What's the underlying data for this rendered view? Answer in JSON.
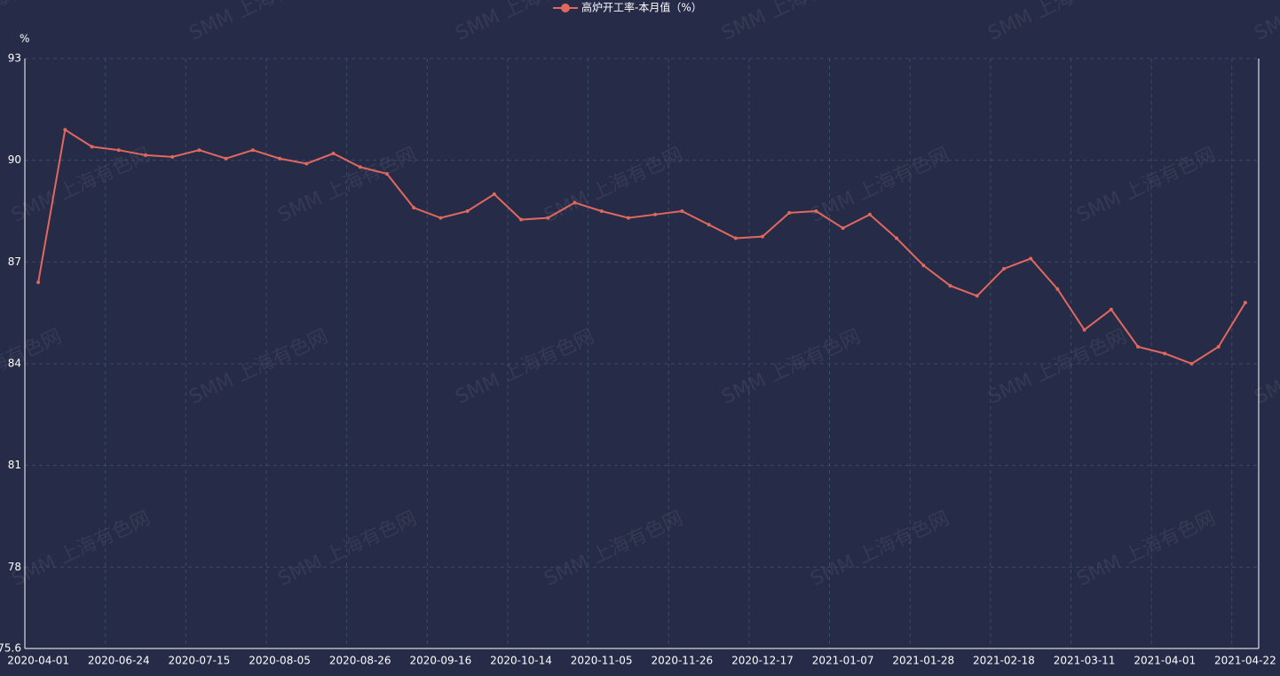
{
  "chart_data": {
    "type": "line",
    "y_axis_label": "%",
    "watermark": "SMM 上海有色网",
    "categories": [
      "2020-04-01",
      null,
      null,
      "2020-06-24",
      null,
      null,
      "2020-07-15",
      null,
      null,
      "2020-08-05",
      null,
      null,
      "2020-08-26",
      null,
      null,
      "2020-09-16",
      null,
      null,
      "2020-10-14",
      null,
      null,
      "2020-11-05",
      null,
      null,
      "2020-11-26",
      null,
      null,
      "2020-12-17",
      null,
      null,
      "2021-01-07",
      null,
      null,
      "2021-01-28",
      null,
      null,
      "2021-02-18",
      null,
      null,
      "2021-03-11",
      null,
      null,
      "2021-04-01",
      null,
      null,
      "2021-04-22"
    ],
    "series": [
      {
        "name": "高炉开工率-本月值（%）",
        "color": "#e0685e",
        "values": [
          86.4,
          90.9,
          90.4,
          90.3,
          90.15,
          90.1,
          90.3,
          90.05,
          90.3,
          90.05,
          89.9,
          90.2,
          89.8,
          89.6,
          88.6,
          88.3,
          88.5,
          89.0,
          88.25,
          88.3,
          88.75,
          88.5,
          88.3,
          88.4,
          88.5,
          88.1,
          87.7,
          87.75,
          88.45,
          88.5,
          88.0,
          88.4,
          87.7,
          86.9,
          86.3,
          86.0,
          86.8,
          87.1,
          86.2,
          85.0,
          85.6,
          84.5,
          84.3,
          84.0,
          84.5,
          85.8
        ]
      }
    ],
    "ylim": [
      75.6,
      93
    ],
    "yticks": [
      75.6,
      78,
      81,
      84,
      87,
      90,
      93
    ],
    "grid": true
  }
}
